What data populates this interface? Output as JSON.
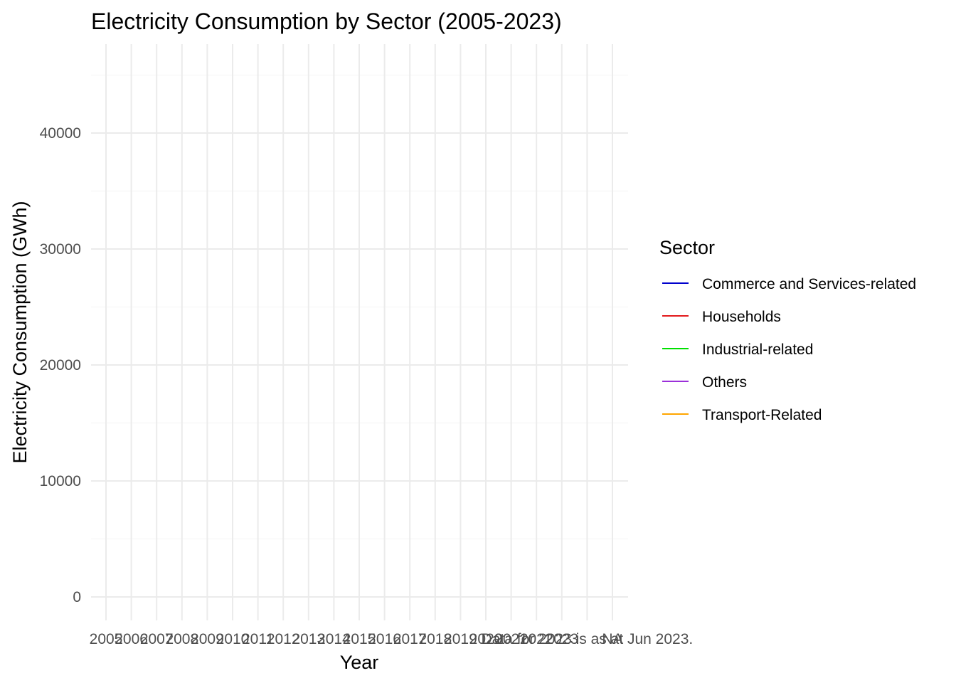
{
  "chart_data": {
    "type": "line",
    "title": "Electricity Consumption by Sector (2005-2023)",
    "xlabel": "Year",
    "ylabel": "Electricity Consumption (GWh)",
    "categories": [
      "2005",
      "2006",
      "2007",
      "2008",
      "2009",
      "2010",
      "2011",
      "2012",
      "2013",
      "2014",
      "2015",
      "2016",
      "2017",
      "2018",
      "2019",
      "2020",
      "2021",
      "2022",
      "2023",
      "Data for 2023 is as at Jun 2023.",
      "NA"
    ],
    "y_ticks": [
      0,
      10000,
      20000,
      30000,
      40000
    ],
    "ylim": [
      -2000,
      47500
    ],
    "grid": true,
    "legend": {
      "title": "Sector",
      "placement": "right",
      "entries": [
        {
          "name": "Commerce and Services-related",
          "color": "#0000cd"
        },
        {
          "name": "Households",
          "color": "#e31a1c"
        },
        {
          "name": "Industrial-related",
          "color": "#00e000"
        },
        {
          "name": "Others",
          "color": "#9b30d9"
        },
        {
          "name": "Transport-Related",
          "color": "#ffa500"
        }
      ]
    },
    "series": []
  }
}
